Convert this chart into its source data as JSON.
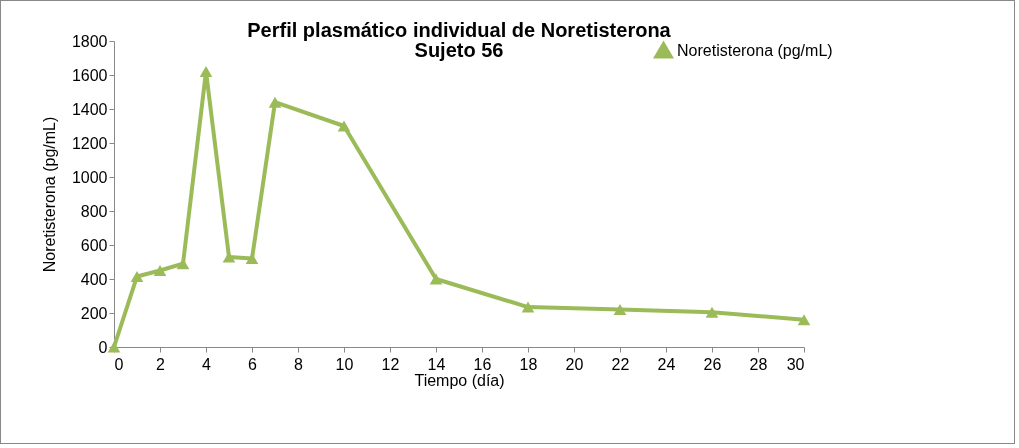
{
  "chart_data": {
    "type": "line",
    "title": "Perfil plasmático individual de Noretisterona",
    "subtitle": "Sujeto 56",
    "xlabel": "Tiempo (día)",
    "ylabel": "Noretisterona (pg/mL)",
    "x": [
      0,
      1,
      2,
      3,
      4,
      5,
      6,
      7,
      10,
      14,
      18,
      22,
      26,
      30
    ],
    "series": [
      {
        "name": "Noretisterona (pg/mL)",
        "color": "#9bbb59",
        "values": [
          0,
          415,
          450,
          490,
          1620,
          530,
          520,
          1440,
          1300,
          400,
          235,
          220,
          205,
          160
        ]
      }
    ],
    "xlim": [
      0,
      30
    ],
    "xticks": [
      0,
      2,
      4,
      6,
      8,
      10,
      12,
      14,
      16,
      18,
      20,
      22,
      24,
      26,
      28,
      30
    ],
    "ylim": [
      0,
      1800
    ],
    "yticks": [
      0,
      200,
      400,
      600,
      800,
      1000,
      1200,
      1400,
      1600,
      1800
    ],
    "grid": false,
    "legend": "top right",
    "marker": "triangle",
    "line_style": "solid"
  }
}
